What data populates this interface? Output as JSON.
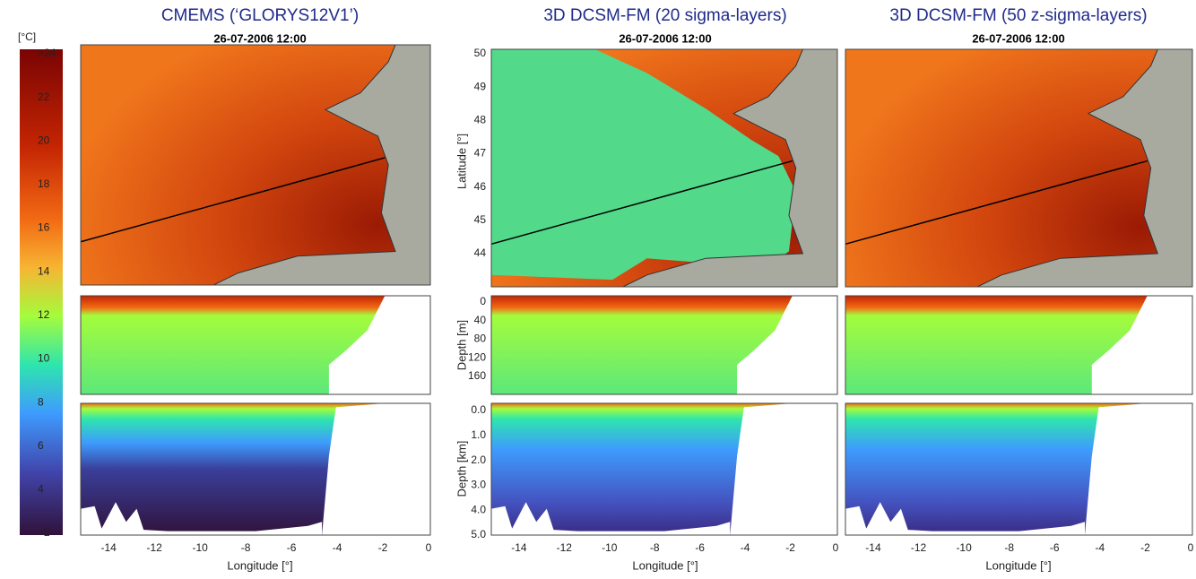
{
  "colorbar": {
    "unit": "[°C]",
    "ticks": [
      ">24",
      "22",
      "20",
      "18",
      "16",
      "14",
      "12",
      "10",
      "8",
      "6",
      "4",
      "<2"
    ]
  },
  "panels": [
    {
      "title": "CMEMS (‘GLORYS12V1’)",
      "timestamp": "26-07-2006 12:00"
    },
    {
      "title": "3D DCSM-FM (20 sigma-layers)",
      "timestamp": "26-07-2006 12:00"
    },
    {
      "title": "3D DCSM-FM (50 z-sigma-layers)",
      "timestamp": "26-07-2006 12:00"
    }
  ],
  "axes": {
    "latitude_label": "Latitude [°]",
    "latitude_ticks": [
      "50",
      "49",
      "48",
      "47",
      "46",
      "45",
      "44"
    ],
    "depth_m_label": "Depth [m]",
    "depth_m_ticks": [
      "0",
      "40",
      "80",
      "120",
      "160"
    ],
    "depth_km_label": "Depth [km]",
    "depth_km_ticks": [
      "0.0",
      "1.0",
      "2.0",
      "3.0",
      "4.0",
      "5.0"
    ],
    "longitude_label": "Longitude [°]",
    "longitude_ticks": [
      "-14",
      "-12",
      "-10",
      "-8",
      "-6",
      "-4",
      "-2",
      "0"
    ]
  }
}
